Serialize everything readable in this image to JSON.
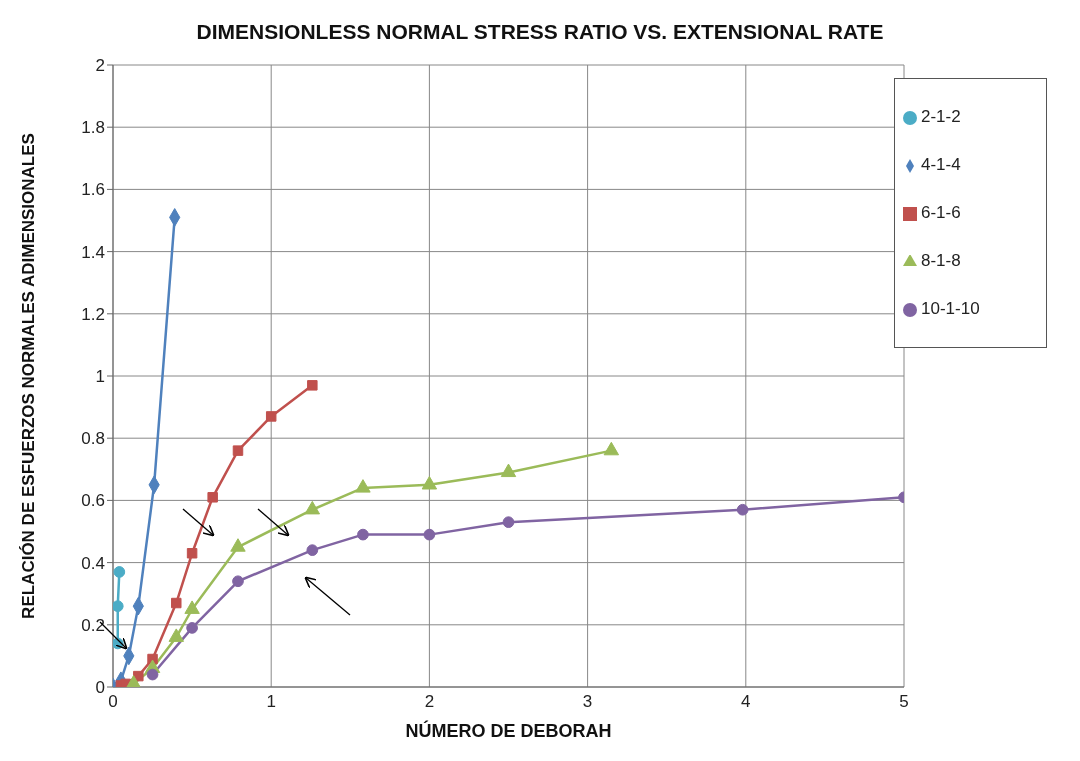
{
  "chart_data": {
    "type": "line",
    "title": "DIMENSIONLESS NORMAL STRESS RATIO VS. EXTENSIONAL RATE",
    "xlabel": "NÚMERO DE  DEBORAH",
    "ylabel": "RELACIÓN DE ESFUERZOS NORMALES ADIMENSIONALES",
    "xlim": [
      0,
      5
    ],
    "xticks": [
      0,
      1,
      2,
      3,
      4,
      5
    ],
    "ylim": [
      0,
      2
    ],
    "yticks": [
      0,
      0.2,
      0.4,
      0.6,
      0.8,
      1,
      1.2,
      1.4,
      1.6,
      1.8,
      2
    ],
    "grid": true,
    "legend": "top right",
    "series": [
      {
        "name": "2-1-2",
        "color": "#4bacc6",
        "marker": "circle",
        "x": [
          0.03,
          0.03,
          0.04
        ],
        "values": [
          0.14,
          0.26,
          0.37
        ]
      },
      {
        "name": "4-1-4",
        "color": "#4f81bd",
        "marker": "diamond",
        "x": [
          0,
          0.05,
          0.1,
          0.16,
          0.26,
          0.39
        ],
        "values": [
          0,
          0.02,
          0.1,
          0.26,
          0.65,
          1.51
        ]
      },
      {
        "name": "6-1-6",
        "color": "#c0504d",
        "marker": "square",
        "x": [
          0.05,
          0.08,
          0.16,
          0.25,
          0.4,
          0.5,
          0.63,
          0.79,
          1,
          1.26
        ],
        "values": [
          0.005,
          0.01,
          0.035,
          0.09,
          0.27,
          0.43,
          0.61,
          0.76,
          0.87,
          0.97
        ]
      },
      {
        "name": "8-1-8",
        "color": "#9bbb59",
        "marker": "triangle",
        "x": [
          0.13,
          0.25,
          0.4,
          0.5,
          0.79,
          1.26,
          1.58,
          2,
          2.5,
          3.15
        ],
        "values": [
          0.01,
          0.06,
          0.16,
          0.25,
          0.45,
          0.57,
          0.64,
          0.65,
          0.69,
          0.76
        ]
      },
      {
        "name": "10-1-10",
        "color": "#8064a2",
        "marker": "circle",
        "x": [
          0.25,
          0.5,
          0.79,
          1.26,
          1.58,
          2,
          2.5,
          3.98,
          5
        ],
        "values": [
          0.04,
          0.19,
          0.34,
          0.44,
          0.49,
          0.49,
          0.53,
          0.57,
          0.61
        ]
      }
    ]
  }
}
